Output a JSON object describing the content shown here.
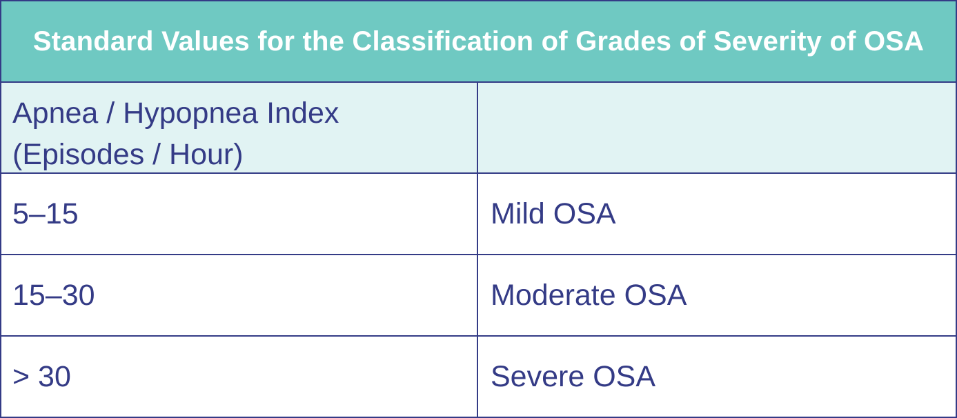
{
  "table": {
    "title": "Standard Values for the Classification of Grades of Severity of OSA",
    "header": {
      "line1": "Apnea / Hypopnea Index",
      "line2": "(Episodes / Hour)",
      "right": ""
    },
    "rows": [
      {
        "range": "5–15",
        "grade": "Mild OSA"
      },
      {
        "range": "15–30",
        "grade": "Moderate OSA"
      },
      {
        "range": "> 30",
        "grade": "Severe OSA"
      }
    ]
  },
  "colors": {
    "title_background": "#6fc9c2",
    "header_background": "#e1f3f3",
    "text_and_borders": "#343b86",
    "title_text": "#ffffff"
  }
}
